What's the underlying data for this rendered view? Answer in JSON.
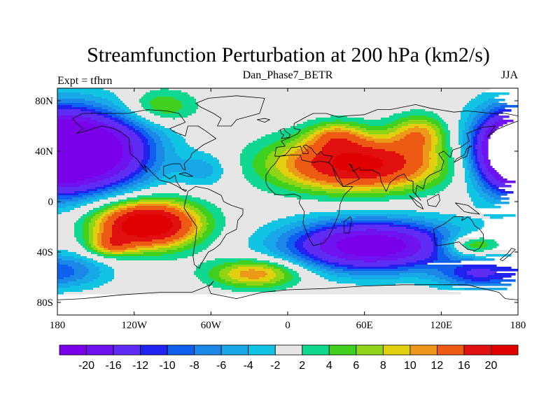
{
  "chart_data": {
    "type": "heatmap",
    "title": "Streamfunction Perturbation at 200 hPa (km2/s)",
    "subtitle_left": "Expt = tfhrn",
    "subtitle_center": "Dan_Phase7_BETR",
    "subtitle_right": "JJA",
    "x_ticks": [
      {
        "value": -180,
        "label": "180"
      },
      {
        "value": -120,
        "label": "120W"
      },
      {
        "value": -60,
        "label": "60W"
      },
      {
        "value": 0,
        "label": "0"
      },
      {
        "value": 60,
        "label": "60E"
      },
      {
        "value": 120,
        "label": "120E"
      },
      {
        "value": 180,
        "label": "180"
      }
    ],
    "y_ticks": [
      {
        "value": 80,
        "label": "80N"
      },
      {
        "value": 40,
        "label": "40N"
      },
      {
        "value": 0,
        "label": "0"
      },
      {
        "value": -40,
        "label": "40S"
      },
      {
        "value": -80,
        "label": "80S"
      }
    ],
    "xlim": [
      -180,
      180
    ],
    "ylim": [
      -90,
      90
    ],
    "levels": [
      -20,
      -16,
      -12,
      -10,
      -8,
      -6,
      -4,
      -2,
      2,
      4,
      6,
      8,
      10,
      12,
      16,
      20
    ],
    "level_labels": [
      "-20",
      "-16",
      "-12",
      "-10",
      "-8",
      "-6",
      "-4",
      "-2",
      "2",
      "4",
      "6",
      "8",
      "10",
      "12",
      "16",
      "20"
    ],
    "colors": [
      "#7a00ea",
      "#6e12f0",
      "#5e2cf2",
      "#2222ee",
      "#1060f0",
      "#1b88e8",
      "#18a8e8",
      "#12c4e4",
      "#e6e6e6",
      "#10d890",
      "#40d020",
      "#90d418",
      "#e0d010",
      "#ec9818",
      "#ec5a14",
      "#e01010",
      "#e00000"
    ],
    "field_centers": [
      {
        "lon": -110,
        "lat": -18,
        "amp": 26,
        "sx": 28,
        "sy": 13
      },
      {
        "lon": -138,
        "lat": -35,
        "amp": 9,
        "sx": 12,
        "sy": 6
      },
      {
        "lon": -25,
        "lat": -57,
        "amp": 12,
        "sx": 25,
        "sy": 8
      },
      {
        "lon": 55,
        "lat": 30,
        "amp": 22,
        "sx": 45,
        "sy": 15
      },
      {
        "lon": 38,
        "lat": 52,
        "amp": 8,
        "sx": 15,
        "sy": 8
      },
      {
        "lon": 103,
        "lat": 55,
        "amp": 9,
        "sx": 15,
        "sy": 10
      },
      {
        "lon": 145,
        "lat": -58,
        "amp": -9,
        "sx": 20,
        "sy": 8
      },
      {
        "lon": 145,
        "lat": -35,
        "amp": 10,
        "sx": 16,
        "sy": 6
      },
      {
        "lon": -150,
        "lat": 40,
        "amp": -24,
        "sx": 32,
        "sy": 22
      },
      {
        "lon": 175,
        "lat": 40,
        "amp": -23,
        "sx": 22,
        "sy": 22
      },
      {
        "lon": 65,
        "lat": -35,
        "amp": -24,
        "sx": 45,
        "sy": 14
      },
      {
        "lon": -175,
        "lat": -55,
        "amp": -8,
        "sx": 25,
        "sy": 10
      },
      {
        "lon": -100,
        "lat": 75,
        "amp": 7,
        "sx": 20,
        "sy": 10
      },
      {
        "lon": -65,
        "lat": 25,
        "amp": -5,
        "sx": 15,
        "sy": 10
      }
    ]
  }
}
